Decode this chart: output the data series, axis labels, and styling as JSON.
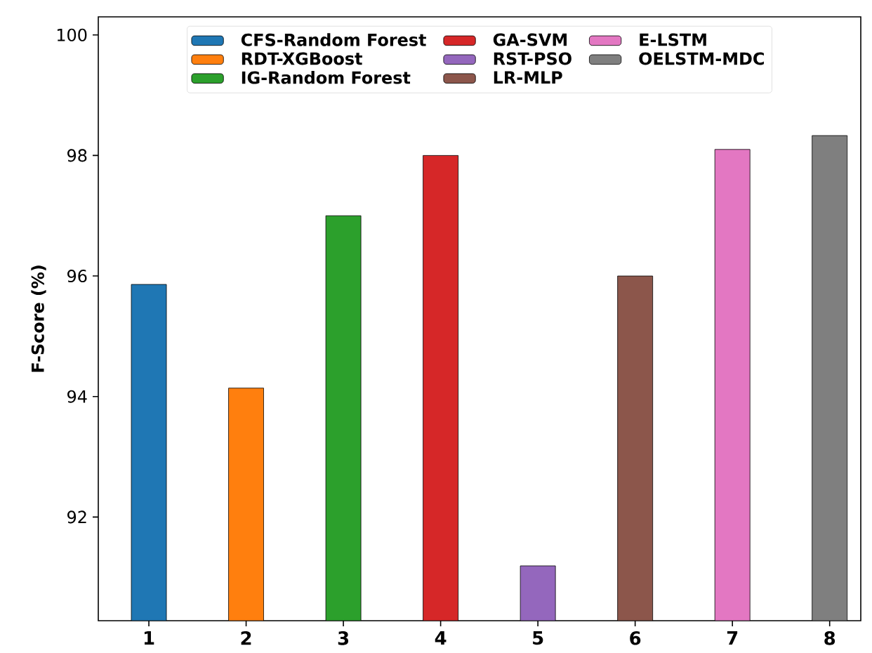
{
  "chart_data": {
    "type": "bar",
    "ylabel": "F-Score (%)",
    "categories": [
      "1",
      "2",
      "3",
      "4",
      "5",
      "6",
      "7",
      "8"
    ],
    "series": [
      {
        "name": "CFS-Random Forest",
        "color": "#1f77b4",
        "values": [
          95.86,
          null,
          null,
          null,
          null,
          null,
          null,
          null
        ]
      },
      {
        "name": "RDT-XGBoost",
        "color": "#ff7f0e",
        "values": [
          null,
          94.14,
          null,
          null,
          null,
          null,
          null,
          null
        ]
      },
      {
        "name": "IG-Random Forest",
        "color": "#2ca02c",
        "values": [
          null,
          null,
          97.0,
          null,
          null,
          null,
          null,
          null
        ]
      },
      {
        "name": "GA-SVM",
        "color": "#d62728",
        "values": [
          null,
          null,
          null,
          98.0,
          null,
          null,
          null,
          null
        ]
      },
      {
        "name": "RST-PSO",
        "color": "#9467bd",
        "values": [
          null,
          null,
          null,
          null,
          91.19,
          null,
          null,
          null
        ]
      },
      {
        "name": "LR-MLP",
        "color": "#8c564b",
        "values": [
          null,
          null,
          null,
          null,
          null,
          96.0,
          null,
          null
        ]
      },
      {
        "name": "E-LSTM",
        "color": "#e377c2",
        "values": [
          null,
          null,
          null,
          null,
          null,
          null,
          98.1,
          null
        ]
      },
      {
        "name": "OELSTM-MDC",
        "color": "#7f7f7f",
        "values": [
          null,
          null,
          null,
          null,
          null,
          null,
          null,
          98.33
        ]
      }
    ],
    "ylim": [
      90.28,
      100.3
    ],
    "yticks": [
      92,
      94,
      96,
      98,
      100
    ],
    "grid": false,
    "legend": "top"
  }
}
